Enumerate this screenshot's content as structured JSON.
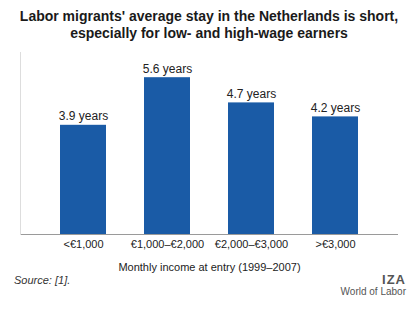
{
  "chart_data": {
    "type": "bar",
    "title": "Labor migrants' average stay in the Netherlands is short, especially for low- and high-wage earners",
    "categories": [
      "<€1,000",
      "€1,000–€2,000",
      "€2,000–€3,000",
      ">€3,000"
    ],
    "values": [
      3.9,
      5.6,
      4.7,
      4.2
    ],
    "value_labels": [
      "3.9 years",
      "5.6 years",
      "4.7 years",
      "4.2 years"
    ],
    "data_labels": true,
    "color": "#1a5ba6",
    "x_label": "Monthly income at entry (1999–2007)",
    "ylim": [
      0,
      6.5
    ],
    "tick_labels": "x",
    "grid": false,
    "source": "Source: [1].",
    "logo": [
      "IZA",
      "World of Labor"
    ]
  }
}
